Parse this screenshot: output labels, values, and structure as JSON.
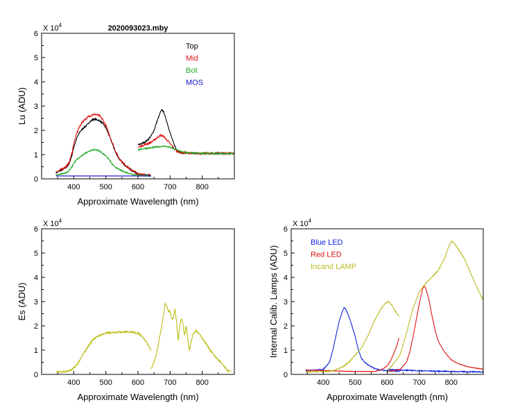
{
  "chart_data": [
    {
      "id": "lu",
      "type": "line",
      "title": "2020093023.mby",
      "xlabel": "Approximate Wavelength (nm)",
      "ylabel": "Lu (ADU)",
      "multiplier": "X 10",
      "multiplier_exp": "4",
      "xlim": [
        300,
        900
      ],
      "ylim": [
        0,
        6
      ],
      "xticks": [
        400,
        500,
        600,
        700,
        800
      ],
      "xtick_labels": [
        "400",
        "500",
        "600",
        "700",
        "800"
      ],
      "yticks": [
        0,
        1,
        2,
        3,
        4,
        5,
        6
      ],
      "ytick_labels": [
        "0",
        "1",
        "2",
        "3",
        "4",
        "5",
        "6"
      ],
      "legend_position": "top-right",
      "series": [
        {
          "name": "Top",
          "color": "#000000",
          "noise": 0.03,
          "segments": [
            {
              "x": [
                345,
                360,
                375,
                385,
                395,
                400,
                410,
                420,
                430,
                440,
                450,
                460,
                470,
                480,
                490,
                500,
                510,
                520,
                530,
                540,
                550,
                560,
                570,
                580,
                590,
                600,
                610,
                625,
                640
              ],
              "y": [
                0.25,
                0.35,
                0.45,
                0.6,
                1.0,
                1.3,
                1.7,
                1.95,
                2.1,
                2.2,
                2.35,
                2.45,
                2.45,
                2.4,
                2.3,
                2.1,
                1.8,
                1.45,
                1.1,
                0.85,
                0.7,
                0.55,
                0.45,
                0.35,
                0.28,
                0.2,
                0.18,
                0.15,
                0.14
              ]
            },
            {
              "x": [
                600,
                610,
                620,
                630,
                640,
                650,
                660,
                670,
                675,
                680,
                690,
                700,
                710,
                720,
                730,
                740,
                760,
                800,
                850,
                900
              ],
              "y": [
                1.4,
                1.45,
                1.5,
                1.6,
                1.75,
                2.0,
                2.4,
                2.75,
                2.85,
                2.75,
                2.35,
                1.9,
                1.5,
                1.2,
                1.1,
                1.08,
                1.06,
                1.05,
                1.05,
                1.05
              ]
            }
          ]
        },
        {
          "name": "Mid",
          "color": "#dd1111",
          "noise": 0.04,
          "segments": [
            {
              "x": [
                345,
                360,
                375,
                385,
                395,
                400,
                410,
                420,
                430,
                440,
                450,
                460,
                470,
                480,
                490,
                500,
                510,
                520,
                530,
                540,
                550,
                560,
                570,
                580,
                590,
                600,
                610,
                625,
                640
              ],
              "y": [
                0.28,
                0.38,
                0.5,
                0.65,
                1.1,
                1.45,
                1.9,
                2.2,
                2.4,
                2.5,
                2.6,
                2.65,
                2.65,
                2.6,
                2.45,
                2.2,
                1.85,
                1.5,
                1.15,
                0.88,
                0.72,
                0.57,
                0.46,
                0.36,
                0.29,
                0.21,
                0.19,
                0.16,
                0.15
              ]
            },
            {
              "x": [
                600,
                610,
                620,
                630,
                640,
                650,
                660,
                670,
                680,
                690,
                700,
                710,
                720,
                730,
                740,
                760,
                800,
                850,
                900
              ],
              "y": [
                1.3,
                1.35,
                1.4,
                1.45,
                1.5,
                1.6,
                1.7,
                1.8,
                1.75,
                1.6,
                1.45,
                1.3,
                1.15,
                1.1,
                1.08,
                1.06,
                1.05,
                1.05,
                1.05
              ]
            }
          ]
        },
        {
          "name": "Bot",
          "color": "#22aa22",
          "noise": 0.025,
          "segments": [
            {
              "x": [
                345,
                360,
                375,
                385,
                395,
                400,
                410,
                420,
                430,
                440,
                450,
                460,
                470,
                480,
                490,
                500,
                510,
                520,
                530,
                540,
                550,
                560,
                570,
                580,
                590,
                600,
                610,
                625,
                640
              ],
              "y": [
                0.15,
                0.2,
                0.25,
                0.33,
                0.5,
                0.65,
                0.8,
                0.9,
                1.0,
                1.1,
                1.15,
                1.2,
                1.2,
                1.15,
                1.05,
                0.95,
                0.8,
                0.6,
                0.48,
                0.4,
                0.33,
                0.28,
                0.24,
                0.2,
                0.17,
                0.15,
                0.14,
                0.13,
                0.12
              ]
            },
            {
              "x": [
                600,
                620,
                640,
                660,
                680,
                700,
                720,
                740,
                760,
                800,
                850,
                900
              ],
              "y": [
                1.2,
                1.25,
                1.28,
                1.32,
                1.35,
                1.3,
                1.2,
                1.1,
                1.07,
                1.05,
                1.04,
                1.04
              ]
            }
          ]
        },
        {
          "name": "MOS",
          "color": "#1111cc",
          "noise": 0.0,
          "segments": [
            {
              "x": [
                345,
                640
              ],
              "y": [
                0.12,
                0.12
              ]
            }
          ]
        }
      ]
    },
    {
      "id": "es",
      "type": "line",
      "title": "",
      "xlabel": "Approximate Wavelength (nm)",
      "ylabel": "Es  (ADU)",
      "multiplier": "X 10",
      "multiplier_exp": "4",
      "xlim": [
        300,
        900
      ],
      "ylim": [
        0,
        6
      ],
      "xticks": [
        400,
        500,
        600,
        700,
        800
      ],
      "xtick_labels": [
        "400",
        "500",
        "600",
        "700",
        "800"
      ],
      "yticks": [
        0,
        1,
        2,
        3,
        4,
        5,
        6
      ],
      "ytick_labels": [
        "0",
        "1",
        "2",
        "3",
        "4",
        "5",
        "6"
      ],
      "series": [
        {
          "name": "Es",
          "color": "#bbbb11",
          "noise": 0.035,
          "segments": [
            {
              "x": [
                345,
                380,
                395,
                410,
                420,
                430,
                440,
                450,
                460,
                480,
                500,
                520,
                540,
                560,
                580,
                600,
                610,
                620,
                630,
                640
              ],
              "y": [
                0.1,
                0.12,
                0.2,
                0.4,
                0.6,
                0.85,
                1.05,
                1.25,
                1.45,
                1.6,
                1.7,
                1.72,
                1.75,
                1.75,
                1.75,
                1.7,
                1.6,
                1.45,
                1.25,
                1.0
              ]
            },
            {
              "x": [
                640,
                650,
                660,
                670,
                680,
                685,
                690,
                695,
                700,
                705,
                710,
                715,
                720,
                725,
                730,
                735,
                740,
                745,
                750,
                755,
                760,
                770,
                780,
                790,
                800,
                810,
                820,
                830,
                840,
                850,
                860,
                870,
                880,
                890
              ],
              "y": [
                0.2,
                0.5,
                1.0,
                1.7,
                2.5,
                2.95,
                2.8,
                2.6,
                2.6,
                2.3,
                2.3,
                2.7,
                2.2,
                1.4,
                2.0,
                2.3,
                2.1,
                1.6,
                2.0,
                1.5,
                1.0,
                1.6,
                1.8,
                1.7,
                1.5,
                1.3,
                1.1,
                0.9,
                0.75,
                0.6,
                0.45,
                0.3,
                0.15,
                0.1
              ]
            }
          ]
        }
      ]
    },
    {
      "id": "lamps",
      "type": "line",
      "title": "",
      "xlabel": "Approximate Wavelength (nm)",
      "ylabel": "Internal Calib. Lamps  (ADU)",
      "multiplier": "X 10",
      "multiplier_exp": "4",
      "xlim": [
        300,
        900
      ],
      "ylim": [
        0,
        6
      ],
      "xticks": [
        400,
        500,
        600,
        700,
        800
      ],
      "xtick_labels": [
        "400",
        "500",
        "600",
        "700",
        "800"
      ],
      "yticks": [
        0,
        1,
        2,
        3,
        4,
        5,
        6
      ],
      "ytick_labels": [
        "0",
        "1",
        "2",
        "3",
        "4",
        "5",
        "6"
      ],
      "legend_position": "top-left",
      "series": [
        {
          "name": "Blue LED",
          "color": "#1122dd",
          "noise": 0.02,
          "segments": [
            {
              "x": [
                345,
                400,
                420,
                430,
                440,
                450,
                460,
                465,
                470,
                480,
                490,
                500,
                510,
                520,
                530,
                540,
                560,
                580,
                600,
                640
              ],
              "y": [
                0.15,
                0.2,
                0.5,
                1.0,
                1.6,
                2.2,
                2.6,
                2.75,
                2.7,
                2.4,
                2.0,
                1.55,
                1.0,
                0.65,
                0.5,
                0.4,
                0.25,
                0.18,
                0.15,
                0.13
              ]
            },
            {
              "x": [
                600,
                700,
                800,
                900
              ],
              "y": [
                0.2,
                0.15,
                0.12,
                0.1
              ]
            }
          ]
        },
        {
          "name": "Red LED",
          "color": "#dd1111",
          "noise": 0.01,
          "segments": [
            {
              "x": [
                345,
                500,
                560,
                580,
                600,
                610,
                620,
                630,
                637
              ],
              "y": [
                0.18,
                0.12,
                0.12,
                0.18,
                0.35,
                0.55,
                0.85,
                1.2,
                1.5
              ]
            },
            {
              "x": [
                600,
                640,
                660,
                670,
                680,
                690,
                700,
                710,
                715,
                720,
                730,
                740,
                750,
                760,
                780,
                800,
                820,
                850,
                880,
                900
              ],
              "y": [
                0.12,
                0.2,
                0.5,
                0.9,
                1.5,
                2.2,
                2.9,
                3.5,
                3.65,
                3.55,
                3.1,
                2.4,
                1.8,
                1.35,
                0.9,
                0.6,
                0.45,
                0.32,
                0.25,
                0.22
              ]
            }
          ]
        },
        {
          "name": "Incand LAMP",
          "color": "#bbbb22",
          "noise": 0.02,
          "segments": [
            {
              "x": [
                345,
                420,
                440,
                460,
                480,
                500,
                520,
                540,
                560,
                580,
                595,
                605,
                615,
                625,
                637
              ],
              "y": [
                0.1,
                0.12,
                0.2,
                0.3,
                0.5,
                0.8,
                1.1,
                1.6,
                2.2,
                2.7,
                2.95,
                3.0,
                2.85,
                2.6,
                2.4
              ]
            },
            {
              "x": [
                600,
                640,
                660,
                680,
                700,
                720,
                740,
                760,
                780,
                790,
                800,
                810,
                820,
                840,
                860,
                880,
                900
              ],
              "y": [
                0.1,
                0.8,
                1.7,
                2.7,
                3.4,
                3.75,
                4.0,
                4.3,
                4.8,
                5.2,
                5.5,
                5.4,
                5.2,
                4.8,
                4.2,
                3.6,
                3.05
              ]
            }
          ]
        }
      ]
    }
  ]
}
